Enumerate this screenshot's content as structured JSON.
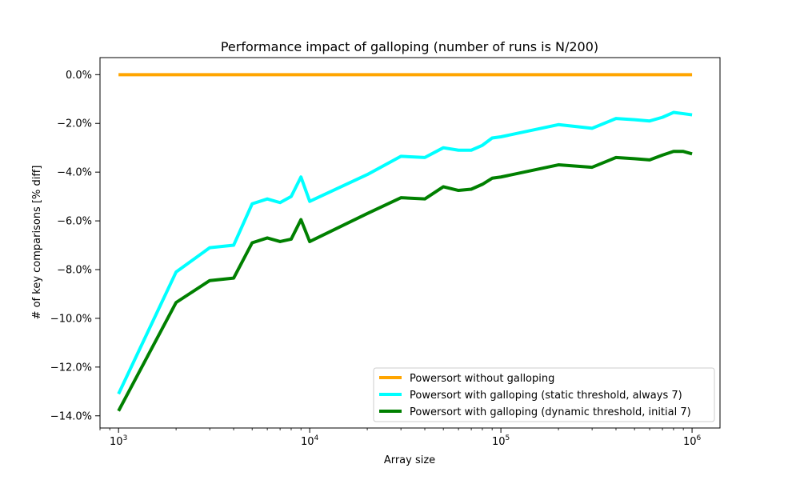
{
  "chart_data": {
    "type": "line",
    "title": "Performance impact of galloping (number of runs is N/200)",
    "xlabel": "Array size",
    "ylabel": "# of key comparisons [% diff]",
    "xscale": "log",
    "xlim": [
      800,
      1400000
    ],
    "ylim": [
      -14.5,
      0.7
    ],
    "x_ticks": [
      {
        "value": 1000,
        "base": "10",
        "exp": "3"
      },
      {
        "value": 10000,
        "base": "10",
        "exp": "4"
      },
      {
        "value": 100000,
        "base": "10",
        "exp": "5"
      },
      {
        "value": 1000000,
        "base": "10",
        "exp": "6"
      }
    ],
    "y_ticks": [
      {
        "value": 0,
        "label": "0.0%"
      },
      {
        "value": -2,
        "label": "−2.0%"
      },
      {
        "value": -4,
        "label": "−4.0%"
      },
      {
        "value": -6,
        "label": "−6.0%"
      },
      {
        "value": -8,
        "label": "−8.0%"
      },
      {
        "value": -10,
        "label": "−10.0%"
      },
      {
        "value": -12,
        "label": "−12.0%"
      },
      {
        "value": -14,
        "label": "−14.0%"
      }
    ],
    "grid": false,
    "legend_position": "lower-right",
    "x": [
      1000,
      2000,
      3000,
      4000,
      5000,
      6000,
      7000,
      8000,
      9000,
      10000,
      20000,
      30000,
      40000,
      50000,
      60000,
      70000,
      80000,
      90000,
      100000,
      200000,
      300000,
      400000,
      500000,
      600000,
      700000,
      800000,
      900000,
      1000000
    ],
    "series": [
      {
        "name": "Powersort without galloping",
        "color": "#FFA500",
        "values": [
          0,
          0,
          0,
          0,
          0,
          0,
          0,
          0,
          0,
          0,
          0,
          0,
          0,
          0,
          0,
          0,
          0,
          0,
          0,
          0,
          0,
          0,
          0,
          0,
          0,
          0,
          0,
          0
        ]
      },
      {
        "name": "Powersort with galloping (static threshold, always 7)",
        "color": "#00FFFF",
        "values": [
          -13.1,
          -8.1,
          -7.1,
          -7.0,
          -5.3,
          -5.1,
          -5.25,
          -5.0,
          -4.2,
          -5.2,
          -4.1,
          -3.35,
          -3.4,
          -3.0,
          -3.1,
          -3.1,
          -2.9,
          -2.6,
          -2.55,
          -2.05,
          -2.2,
          -1.8,
          -1.85,
          -1.9,
          -1.75,
          -1.55,
          -1.6,
          -1.65
        ]
      },
      {
        "name": "Powersort with galloping (dynamic threshold, initial 7)",
        "color": "#008000",
        "values": [
          -13.8,
          -9.35,
          -8.45,
          -8.35,
          -6.9,
          -6.7,
          -6.85,
          -6.75,
          -5.95,
          -6.85,
          -5.7,
          -5.05,
          -5.1,
          -4.6,
          -4.75,
          -4.7,
          -4.5,
          -4.25,
          -4.2,
          -3.7,
          -3.8,
          -3.4,
          -3.45,
          -3.5,
          -3.3,
          -3.15,
          -3.15,
          -3.25
        ]
      }
    ]
  }
}
